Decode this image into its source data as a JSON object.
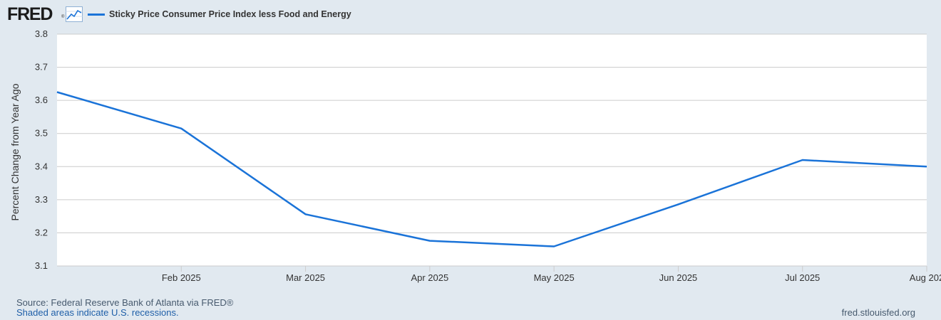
{
  "header": {
    "logo_text": "FRED",
    "logo_reg": "®",
    "logo_icon": "chart-line-icon",
    "legend_label": "Sticky Price Consumer Price Index less Food and Energy"
  },
  "colors": {
    "background": "#e1e9f0",
    "plot_background": "#ffffff",
    "series": "#1a73d8",
    "grid": "#cccccc"
  },
  "chart_data": {
    "type": "line",
    "title": "",
    "xlabel": "",
    "ylabel": "Percent Change from Year Ago",
    "ylim": [
      3.1,
      3.8
    ],
    "yticks": [
      "3.1",
      "3.2",
      "3.3",
      "3.4",
      "3.5",
      "3.6",
      "3.7",
      "3.8"
    ],
    "xlim": [
      "2025-01",
      "2025-08"
    ],
    "xticks": [
      "Feb 2025",
      "Mar 2025",
      "Apr 2025",
      "May 2025",
      "Jun 2025",
      "Jul 2025",
      "Aug 202"
    ],
    "grid": "horizontal",
    "legend_position": "top-left",
    "series": [
      {
        "name": "Sticky Price Consumer Price Index less Food and Energy",
        "x": [
          "2025-01",
          "2025-02",
          "2025-03",
          "2025-04",
          "2025-05",
          "2025-06",
          "2025-07",
          "2025-08"
        ],
        "values": [
          3.625,
          3.515,
          3.256,
          3.176,
          3.159,
          3.286,
          3.42,
          3.4
        ]
      }
    ]
  },
  "footer": {
    "source": "Source: Federal Reserve Bank of Atlanta via FRED®",
    "recession_note": "Shaded areas indicate U.S. recessions.",
    "url": "fred.stlouisfed.org"
  }
}
